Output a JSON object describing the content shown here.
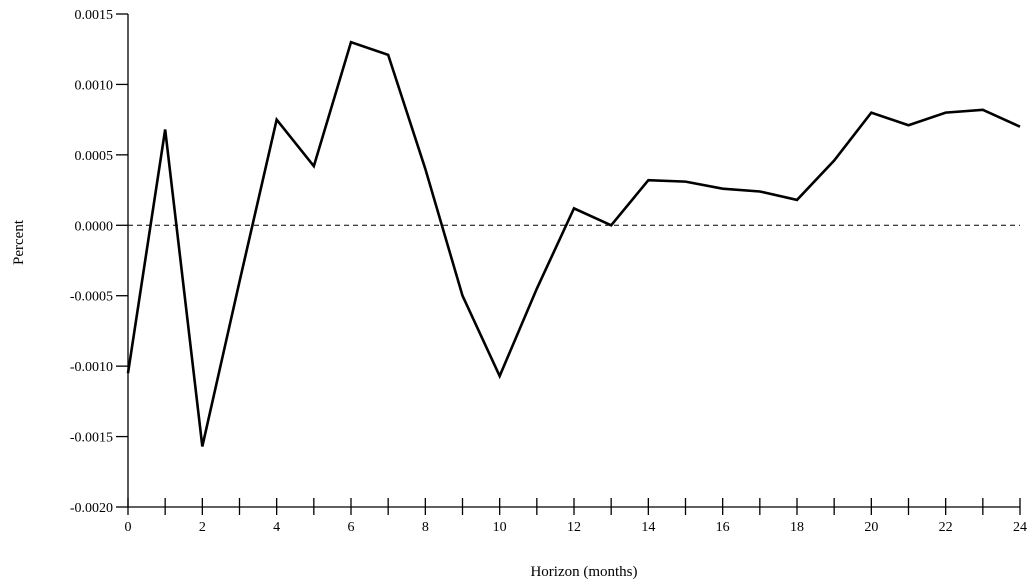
{
  "chart_data": {
    "type": "line",
    "title": "",
    "xlabel": "Horizon (months)",
    "ylabel": "Percent",
    "xlim": [
      0,
      24
    ],
    "ylim": [
      -0.002,
      0.0015
    ],
    "x_ticks": [
      0,
      2,
      4,
      6,
      8,
      10,
      12,
      14,
      16,
      18,
      20,
      22,
      24
    ],
    "x_tick_labels": [
      "0",
      "2",
      "4",
      "6",
      "8",
      "10",
      "12",
      "14",
      "16",
      "18",
      "20",
      "22",
      "24"
    ],
    "x_minor_ticks": [
      1,
      3,
      5,
      7,
      9,
      11,
      13,
      15,
      17,
      19,
      21,
      23
    ],
    "y_ticks": [
      0.0015,
      0.001,
      0.0005,
      0.0,
      -0.0005,
      -0.001,
      -0.0015,
      -0.002
    ],
    "y_tick_labels": [
      "0.0015",
      "0.0010",
      "0.0005",
      "0.0000",
      "-0.0005",
      "-0.0010",
      "-0.0015",
      "-0.0020"
    ],
    "reference_line": {
      "y": 0,
      "style": "dashed"
    },
    "grid": false,
    "series": [
      {
        "x": [
          0,
          1,
          2,
          3,
          4,
          5,
          6,
          7,
          8,
          9,
          10,
          11,
          12,
          13,
          14,
          15,
          16,
          17,
          18,
          19,
          20,
          21,
          22,
          23,
          24
        ],
        "values": [
          -0.00105,
          0.00068,
          -0.00157,
          -0.0004,
          0.00075,
          0.00042,
          0.0013,
          0.00121,
          0.0004,
          -0.0005,
          -0.00107,
          -0.00045,
          0.00012,
          0.0,
          0.00032,
          0.00031,
          0.00026,
          0.00024,
          0.00018,
          0.00046,
          0.0008,
          0.00071,
          0.0008,
          0.00082,
          0.0007
        ],
        "color": "#000000"
      }
    ]
  }
}
